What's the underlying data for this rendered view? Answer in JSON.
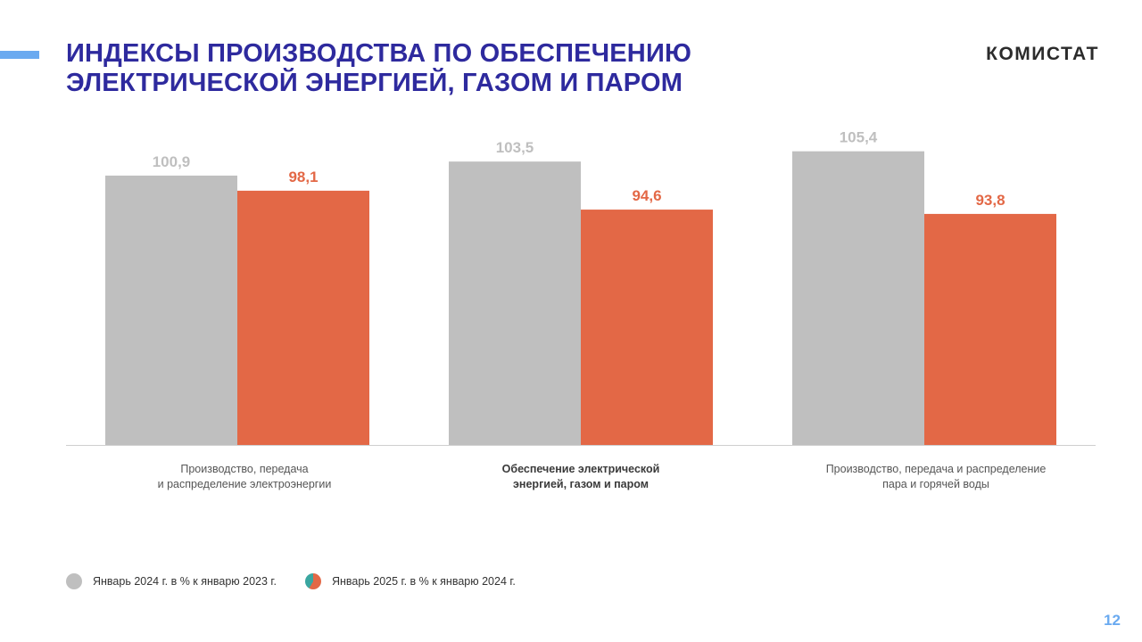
{
  "header": {
    "title_line1": "ИНДЕКСЫ ПРОИЗВОДСТВА ПО ОБЕСПЕЧЕНИЮ",
    "title_line2": "ЭЛЕКТРИЧЕСКОЙ ЭНЕРГИЕЙ, ГАЗОМ И ПАРОМ",
    "brand": "КОМИСТАТ"
  },
  "page_number": "12",
  "colors": {
    "title": "#2e2a9e",
    "accent": "#6aaaf0",
    "series_2024": "#bfbfbf",
    "series_2025": "#e36846",
    "label_2024": "#bfbfbf",
    "label_2025": "#e36846"
  },
  "chart_data": {
    "type": "bar",
    "title": "Индексы производства по обеспечению электрической энергией, газом и паром",
    "categories": [
      "Производство, передача\nи распределение электроэнергии",
      "Обеспечение электрической\nэнергией, газом и паром",
      "Производство, передача и распределение\nпара и горячей воды"
    ],
    "series": [
      {
        "name": "Январь 2024 г. в % к январю 2023 г.",
        "values": [
          100.9,
          103.5,
          105.4
        ],
        "labels": [
          "100,9",
          "103,5",
          "105,4"
        ]
      },
      {
        "name": "Январь 2025 г. в % к январю 2024 г.",
        "values": [
          98.1,
          94.6,
          93.8
        ],
        "labels": [
          "98,1",
          "94,6",
          "93,8"
        ]
      }
    ],
    "ylim": [
      51,
      107
    ],
    "xlabel": "",
    "ylabel": "",
    "grid": false,
    "legend_position": "bottom-left"
  },
  "legend": {
    "item1": "Январь 2024 г. в % к январю 2023 г.",
    "item2": "Январь 2025 г. в % к январю 2024 г."
  }
}
